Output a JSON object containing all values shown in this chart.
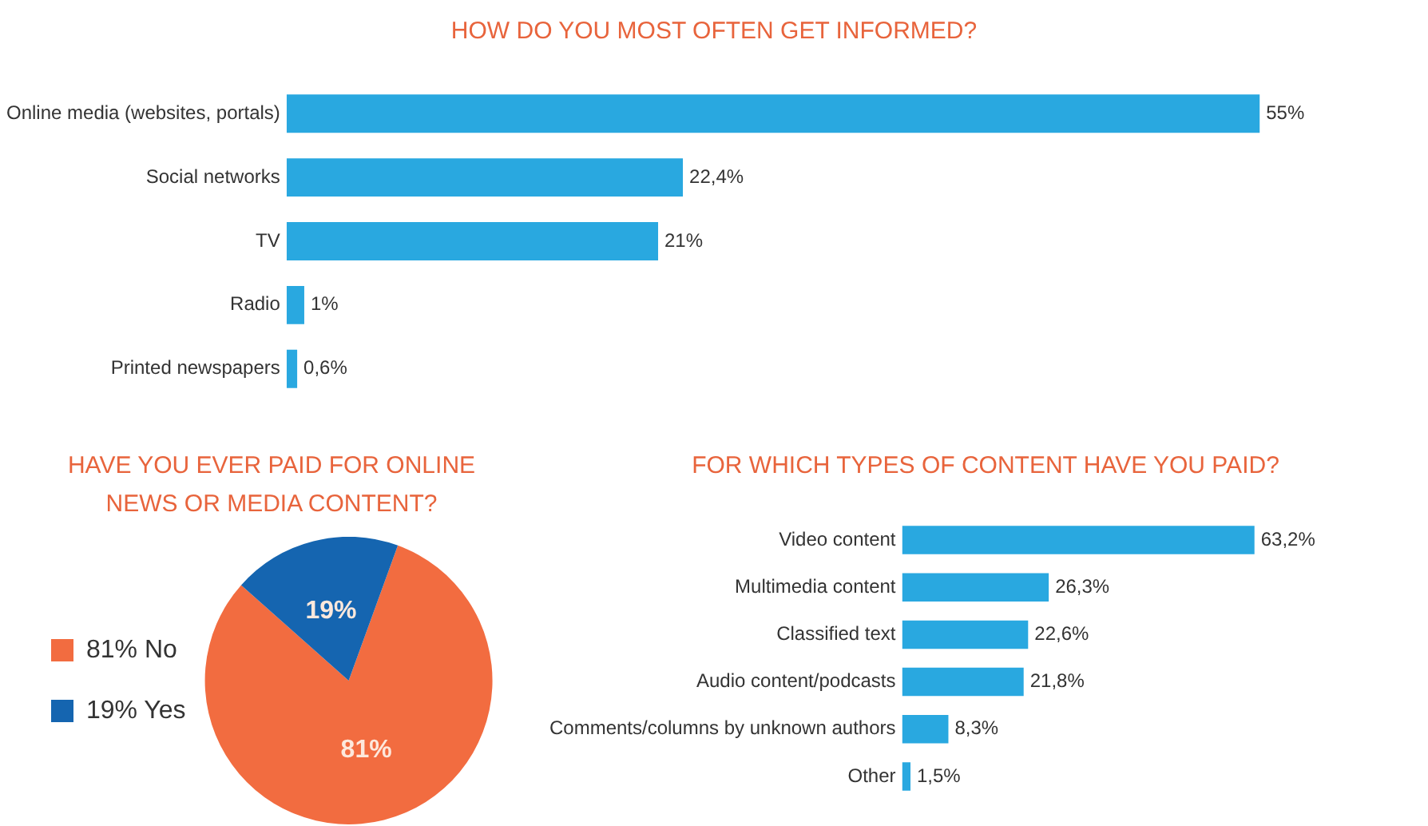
{
  "chart_data": [
    {
      "type": "bar",
      "orientation": "horizontal",
      "title": "HOW DO YOU MOST OFTEN GET INFORMED?",
      "categories": [
        "Online media (websites, portals)",
        "Social networks",
        "TV",
        "Radio",
        "Printed newspapers"
      ],
      "values": [
        55,
        22.4,
        21,
        1,
        0.6
      ],
      "value_labels": [
        "55%",
        "22,4%",
        "21%",
        "1%",
        "0,6%"
      ],
      "color": "#29a8e0",
      "legend": false,
      "grid": false
    },
    {
      "type": "pie",
      "title": "HAVE YOU EVER PAID FOR ONLINE NEWS OR MEDIA CONTENT?",
      "categories": [
        "81% No",
        "19% Yes"
      ],
      "values": [
        81,
        19
      ],
      "colors": [
        "#f26c40",
        "#1565b0"
      ],
      "value_labels": [
        "81%",
        "19%"
      ],
      "legend": "left"
    },
    {
      "type": "bar",
      "orientation": "horizontal",
      "title": "FOR WHICH TYPES OF CONTENT HAVE YOU PAID?",
      "categories": [
        "Video content",
        "Multimedia content",
        "Classified text",
        "Audio content/podcasts",
        "Comments/columns by unknown authors",
        "Other"
      ],
      "values": [
        63.2,
        26.3,
        22.6,
        21.8,
        8.3,
        1.5
      ],
      "value_labels": [
        "63,2%",
        "26,3%",
        "22,6%",
        "21,8%",
        "8,3%",
        "1,5%"
      ],
      "color": "#29a8e0",
      "legend": false,
      "grid": false
    }
  ]
}
